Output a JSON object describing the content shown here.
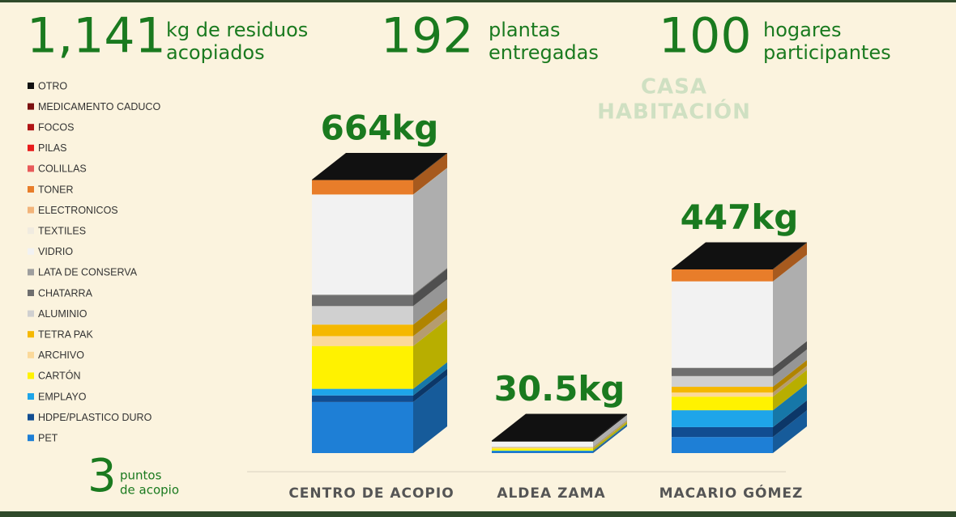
{
  "stats": [
    {
      "value": "1,141",
      "label": [
        "kg de residuos",
        "acopiados"
      ]
    },
    {
      "value": "192",
      "label": [
        "plantas",
        "entregadas"
      ]
    },
    {
      "value": "100",
      "label": [
        "hogares",
        "participantes"
      ]
    }
  ],
  "points": {
    "value": "3",
    "label": [
      "puntos",
      "de acopio"
    ]
  },
  "watermark": [
    "CASA",
    "HABITACIÓN"
  ],
  "chart_data": {
    "type": "stacked-bar-3d",
    "categories": [
      "CENTRO DE ACOPIO",
      "ALDEA ZAMA",
      "MACARIO GÓMEZ"
    ],
    "totals": [
      664,
      30.5,
      447
    ],
    "total_labels": [
      "664kg",
      "30.5kg",
      "447kg"
    ],
    "series": [
      {
        "name": "OTRO",
        "color": "#111111",
        "values": [
          1,
          2.5,
          1
        ]
      },
      {
        "name": "MEDICAMENTO CADUCO",
        "color": "#7b1010",
        "values": [
          0,
          0,
          0
        ]
      },
      {
        "name": "FOCOS",
        "color": "#b01515",
        "values": [
          0,
          0,
          0
        ]
      },
      {
        "name": "PILAS",
        "color": "#e81c1c",
        "values": [
          0,
          0,
          0
        ]
      },
      {
        "name": "COLILLAS",
        "color": "#e85a5a",
        "values": [
          0,
          0,
          0
        ]
      },
      {
        "name": "TONER",
        "color": "#e87d2a",
        "values": [
          35,
          0,
          29
        ]
      },
      {
        "name": "ELECTRONICOS",
        "color": "#f2b47a",
        "values": [
          0,
          0,
          0
        ]
      },
      {
        "name": "TEXTILES",
        "color": "#f0ebe0",
        "values": [
          1,
          0,
          0
        ]
      },
      {
        "name": "VIDRIO",
        "color": "#f2f2f2",
        "values": [
          242,
          12,
          210
        ]
      },
      {
        "name": "LATA DE CONSERVA",
        "color": "#9e9e9e",
        "values": [
          2,
          0,
          0
        ]
      },
      {
        "name": "CHATARRA",
        "color": "#6e6e6e",
        "values": [
          26,
          0,
          20
        ]
      },
      {
        "name": "ALUMINIO",
        "color": "#d0d0d0",
        "values": [
          45,
          2,
          26
        ]
      },
      {
        "name": "TETRA PAK",
        "color": "#f5b800",
        "values": [
          28,
          1,
          14
        ]
      },
      {
        "name": "ARCHIVO",
        "color": "#fbd99a",
        "values": [
          24,
          2,
          10
        ]
      },
      {
        "name": "CARTÓN",
        "color": "#fff200",
        "values": [
          104,
          5,
          33
        ]
      },
      {
        "name": "EMPLAYO",
        "color": "#1ea5e9",
        "values": [
          16,
          2,
          41
        ]
      },
      {
        "name": "HDPE/PLASTICO DURO",
        "color": "#114d91",
        "values": [
          16,
          1,
          24
        ]
      },
      {
        "name": "PET",
        "color": "#1e7fd6",
        "values": [
          124,
          3,
          39
        ]
      }
    ]
  }
}
